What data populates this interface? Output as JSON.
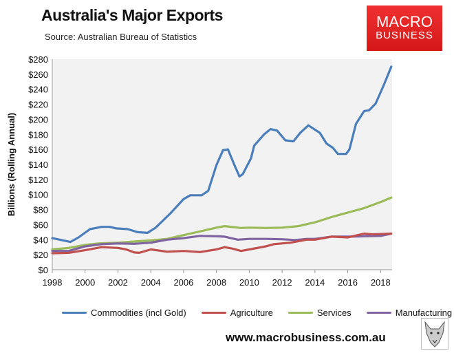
{
  "header": {
    "title": "Australia's Major Exports",
    "source": "Source:  Australian Bureau of Statistics"
  },
  "logo": {
    "line1": "MACRO",
    "line2": "BUSINESS",
    "color": "#e02020"
  },
  "footer": {
    "website": "www.macrobusiness.com.au"
  },
  "chart_data": {
    "type": "line",
    "title": "Australia's Major Exports",
    "xlabel": "",
    "ylabel": "Billions (Rolling Annual)",
    "xlim": [
      1998,
      2018.7
    ],
    "ylim": [
      0,
      280
    ],
    "xticks": [
      "1998",
      "2000",
      "2002",
      "2004",
      "2006",
      "2008",
      "2010",
      "2012",
      "2014",
      "2016",
      "2018"
    ],
    "yticks": [
      "$0",
      "$20",
      "$40",
      "$60",
      "$80",
      "$100",
      "$120",
      "$140",
      "$160",
      "$180",
      "$200",
      "$220",
      "$240",
      "$260",
      "$280"
    ],
    "legend_position": "bottom",
    "series": [
      {
        "name": "Commodities (incl Gold)",
        "color": "#4a7ebb",
        "points": [
          [
            1998,
            42
          ],
          [
            1999.1,
            37
          ],
          [
            1999.6,
            43
          ],
          [
            2000.3,
            54
          ],
          [
            2001,
            57
          ],
          [
            2001.5,
            57
          ],
          [
            2001.9,
            55
          ],
          [
            2002.6,
            54
          ],
          [
            2003.2,
            50
          ],
          [
            2003.8,
            49
          ],
          [
            2004.3,
            56
          ],
          [
            2005.2,
            75
          ],
          [
            2006,
            94
          ],
          [
            2006.4,
            99
          ],
          [
            2007.1,
            99
          ],
          [
            2007.5,
            105
          ],
          [
            2008,
            139
          ],
          [
            2008.4,
            159
          ],
          [
            2008.7,
            160
          ],
          [
            2009.1,
            139
          ],
          [
            2009.4,
            124
          ],
          [
            2009.6,
            127
          ],
          [
            2010.1,
            148
          ],
          [
            2010.3,
            165
          ],
          [
            2010.9,
            180
          ],
          [
            2011.3,
            187
          ],
          [
            2011.7,
            185
          ],
          [
            2012.2,
            172
          ],
          [
            2012.7,
            171
          ],
          [
            2013.1,
            182
          ],
          [
            2013.6,
            192
          ],
          [
            2014.3,
            182
          ],
          [
            2014.7,
            168
          ],
          [
            2015.1,
            162
          ],
          [
            2015.4,
            154
          ],
          [
            2015.9,
            154
          ],
          [
            2016.1,
            160
          ],
          [
            2016.5,
            194
          ],
          [
            2017,
            211
          ],
          [
            2017.3,
            212
          ],
          [
            2017.7,
            221
          ],
          [
            2018.2,
            246
          ],
          [
            2018.65,
            270
          ]
        ]
      },
      {
        "name": "Agriculture",
        "color": "#c0504d",
        "points": [
          [
            1998,
            22
          ],
          [
            1999,
            22.5
          ],
          [
            2000,
            26
          ],
          [
            2001,
            30
          ],
          [
            2002,
            29
          ],
          [
            2002.5,
            27
          ],
          [
            2003,
            23
          ],
          [
            2003.3,
            22.5
          ],
          [
            2004,
            27
          ],
          [
            2005,
            24
          ],
          [
            2006,
            25
          ],
          [
            2007,
            23.5
          ],
          [
            2008,
            27
          ],
          [
            2008.5,
            30
          ],
          [
            2009,
            28
          ],
          [
            2009.5,
            25
          ],
          [
            2010,
            27
          ],
          [
            2011,
            31
          ],
          [
            2011.5,
            34
          ],
          [
            2012.5,
            36
          ],
          [
            2013.5,
            40
          ],
          [
            2014,
            40
          ],
          [
            2015,
            44
          ],
          [
            2016,
            43
          ],
          [
            2017,
            48
          ],
          [
            2017.5,
            47
          ],
          [
            2018.65,
            48
          ]
        ]
      },
      {
        "name": "Services",
        "color": "#9bbb59",
        "points": [
          [
            1998,
            27
          ],
          [
            1999,
            29
          ],
          [
            2000,
            33
          ],
          [
            2000.8,
            35
          ],
          [
            2002,
            36
          ],
          [
            2003,
            37.5
          ],
          [
            2004,
            39
          ],
          [
            2005,
            41
          ],
          [
            2006,
            46
          ],
          [
            2007,
            51
          ],
          [
            2008,
            56
          ],
          [
            2008.5,
            58
          ],
          [
            2009.5,
            55.5
          ],
          [
            2010,
            56
          ],
          [
            2011,
            55.5
          ],
          [
            2012,
            56
          ],
          [
            2013,
            58
          ],
          [
            2014,
            63
          ],
          [
            2015,
            70
          ],
          [
            2016,
            76
          ],
          [
            2017,
            82
          ],
          [
            2018,
            90
          ],
          [
            2018.65,
            96
          ]
        ]
      },
      {
        "name": "Manufacturing",
        "color": "#8064a2",
        "points": [
          [
            1998,
            25
          ],
          [
            1999,
            25
          ],
          [
            2000,
            31
          ],
          [
            2001,
            34
          ],
          [
            2002,
            35
          ],
          [
            2003,
            34.5
          ],
          [
            2004,
            36
          ],
          [
            2005,
            40
          ],
          [
            2006,
            42
          ],
          [
            2007,
            45
          ],
          [
            2008,
            44.5
          ],
          [
            2008.5,
            44
          ],
          [
            2009.3,
            40
          ],
          [
            2010,
            41
          ],
          [
            2011,
            41
          ],
          [
            2012,
            40.5
          ],
          [
            2012.8,
            39.5
          ],
          [
            2013.5,
            41
          ],
          [
            2014,
            41
          ],
          [
            2015,
            44
          ],
          [
            2016,
            44
          ],
          [
            2017,
            44.5
          ],
          [
            2018,
            45
          ],
          [
            2018.65,
            48
          ]
        ]
      }
    ]
  }
}
